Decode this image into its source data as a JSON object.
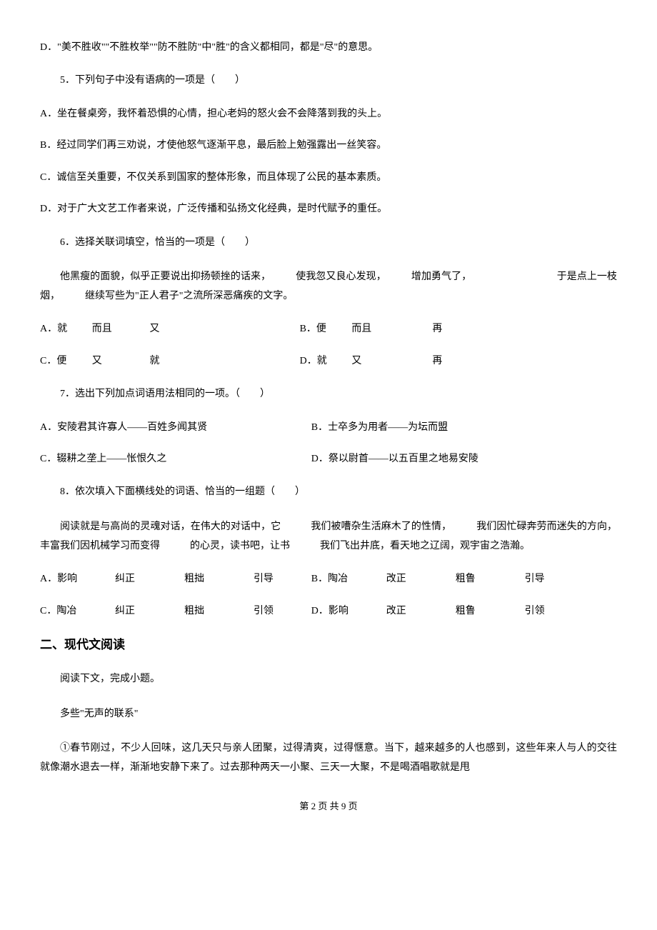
{
  "typography": {
    "body_font": "SimSun",
    "heading_font": "SimHei",
    "body_fontsize_pt": 11,
    "heading_fontsize_pt": 13,
    "line_height": 1.9,
    "text_color": "#000000",
    "background_color": "#ffffff"
  },
  "optD_leading": "D．\"美不胜收\"\"不胜枚举\"\"防不胜防\"中\"胜\"的含义都相同，都是\"尽\"的意思。",
  "q5": {
    "stem": "5．下列句子中没有语病的一项是（　　）",
    "A": "A．坐在餐桌旁，我怀着恐惧的心情，担心老妈的怒火会不会降落到我的头上。",
    "B": "B．经过同学们再三劝说，才使他怒气逐渐平息，最后脸上勉强露出一丝笑容。",
    "C": "C．诚信至关重要，不仅关系到国家的整体形象，而且体现了公民的基本素质。",
    "D": "D．对于广大文艺工作者来说，广泛传播和弘扬文化经典，是时代赋予的重任。"
  },
  "q6": {
    "stem": "6．选择关联词填空，恰当的一项是（　　）",
    "passage": "他黑瘦的面貌，似乎正要说出抑扬顿挫的话来，　　　使我忽又良心发现，　　　增加勇气了，　　　　　　　　　于是点上一枝烟，　　　继续写些为\"正人君子\"之流所深恶痛疾的文字。",
    "options": [
      {
        "label": "A．就",
        "w1": "而且",
        "w2": "又",
        "label2": "B．便",
        "w3": "而且",
        "w4": "再"
      },
      {
        "label": "C．便",
        "w1": "又",
        "w2": "就",
        "label2": "D．就",
        "w3": "又",
        "w4": "再"
      }
    ]
  },
  "q7": {
    "stem": "7．选出下列加点词语用法相同的一项。（　　）",
    "A": "A．安陵君其许寡人——百姓多闻其贤",
    "B": "B．士卒多为用者——为坛而盟",
    "C": "C．辍耕之垄上——怅恨久之",
    "D": "D．祭以尉首——以五百里之地易安陵"
  },
  "q8": {
    "stem": "8．依次填入下面横线处的词语、恰当的一组题（　　）",
    "passage": "阅读就是与高尚的灵魂对话，在伟大的对话中，它　　　我们被嘈杂生活麻木了的性情，　　　我们因忙碌奔劳而迷失的方向，丰富我们因机械学习而变得　　　的心灵，读书吧，让书　　　我们飞出井底，看天地之辽阔，观宇宙之浩瀚。",
    "options": [
      {
        "l": "A．影响",
        "a": "纠正",
        "b": "粗拙",
        "c": "引导",
        "r": "B．陶冶",
        "d": "改正",
        "e": "粗鲁",
        "f": "引导"
      },
      {
        "l": "C．陶冶",
        "a": "纠正",
        "b": "粗拙",
        "c": "引领",
        "r": "D．影响",
        "d": "改正",
        "e": "粗鲁",
        "f": "引领"
      }
    ]
  },
  "section2": "二、现代文阅读",
  "reading": {
    "intro": "阅读下文，完成小题。",
    "title": "多些\"无声的联系\"",
    "p1": "①春节刚过，不少人回味，这几天只与亲人团聚，过得清爽，过得惬意。当下，越来越多的人也感到，这些年来人与人的交往就像潮水退去一样，渐渐地安静下来了。过去那种两天一小聚、三天一大聚，不是喝酒唱歌就是甩"
  },
  "footer": "第 2 页 共 9 页"
}
